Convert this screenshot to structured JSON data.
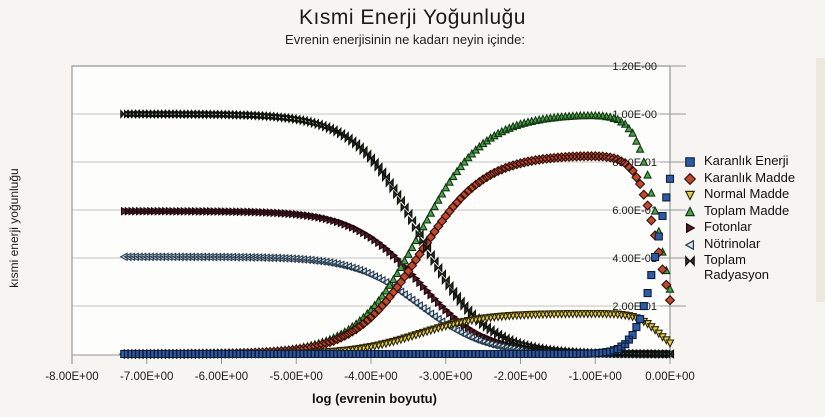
{
  "title": "Kısmi Enerji Yoğunluğu",
  "subtitle": "Evrenin enerjisinin ne kadarı neyin içinde:",
  "x_axis": {
    "label": "log (evrenin boyutu)",
    "min": -8,
    "max": 0,
    "tick_values": [
      -8,
      -7,
      -6,
      -5,
      -4,
      -3,
      -2,
      -1,
      0
    ],
    "tick_labels": [
      "-8.00E+00",
      "-7.00E+00",
      "-6.00E+00",
      "-5.00E+00",
      "-4.00E+00",
      "-3.00E+00",
      "-2.00E+00",
      "-1.00E+00",
      "0.00E+00"
    ]
  },
  "y_axis": {
    "label": "kısmi enerji yoğunluğu",
    "min": 0,
    "max": 1.2,
    "tick_values": [
      1.2,
      1.0,
      0.8,
      0.6,
      0.4,
      0.2
    ],
    "tick_labels": [
      "1.20E-00",
      "1.00E-00",
      "8.00E-01",
      "6.00E-01",
      "4.00E-01",
      "2.00E-01"
    ],
    "grid_values": [
      0.2,
      0.4,
      0.6,
      0.8,
      1.0,
      1.2
    ]
  },
  "colors": {
    "grid": "#c2c2c2",
    "frame": "#969696",
    "plot_bg": "#fdfdfb",
    "text": "#1a1a1a"
  },
  "chart_data": {
    "type": "scatter",
    "x_start": -7.3,
    "x_step": 0.1,
    "draw_order": [
      4,
      5,
      3,
      1,
      6,
      2,
      0
    ],
    "series": [
      {
        "id": "karanlik-enerji",
        "name": "Karanlık Enerji",
        "marker": "square",
        "fill": "#2f5aa8",
        "stroke": "#0d1f3c",
        "values": [
          0.0,
          0.0,
          0.0,
          0.0,
          0.0,
          0.0,
          0.0,
          0.0,
          0.0,
          0.0,
          0.0,
          0.0,
          0.0,
          0.0,
          0.0,
          0.0,
          0.0,
          0.0,
          0.0,
          0.0,
          0.0,
          0.0,
          0.0,
          0.0,
          0.0,
          0.0,
          0.0,
          0.0,
          0.0,
          0.0,
          0.0,
          0.0,
          0.0,
          0.0,
          0.0,
          0.0,
          0.0,
          0.0,
          0.0,
          0.0,
          0.0,
          0.0,
          0.0,
          0.0,
          0.0,
          0.0,
          0.0,
          0.0,
          0.0,
          0.0,
          0.0,
          0.0,
          0.0,
          0.0,
          0.0,
          0.0,
          0.0,
          0.0,
          0.0001,
          0.0002,
          0.0003,
          0.0007,
          0.0013,
          0.0027,
          0.0053,
          0.0106,
          0.021,
          0.041,
          0.0787,
          0.1456,
          0.2537,
          0.4042,
          0.5751,
          0.7299
        ]
      },
      {
        "id": "karanlik-madde",
        "name": "Karanlık Madde",
        "marker": "diamond",
        "fill": "#c0492f",
        "stroke": "#33100a",
        "values": [
          0.0001,
          0.0001,
          0.0002,
          0.0002,
          0.0002,
          0.0003,
          0.0004,
          0.0005,
          0.0006,
          0.0007,
          0.0009,
          0.0012,
          0.0015,
          0.0019,
          0.0023,
          0.003,
          0.0037,
          0.0047,
          0.0059,
          0.0074,
          0.0092,
          0.0116,
          0.0146,
          0.0183,
          0.0229,
          0.0285,
          0.0357,
          0.0444,
          0.0551,
          0.0682,
          0.0841,
          0.1031,
          0.1257,
          0.1525,
          0.1832,
          0.2181,
          0.2571,
          0.2996,
          0.345,
          0.392,
          0.4397,
          0.4868,
          0.532,
          0.5746,
          0.6134,
          0.6482,
          0.6788,
          0.7052,
          0.7277,
          0.7466,
          0.7624,
          0.7753,
          0.786,
          0.7946,
          0.8017,
          0.8073,
          0.8119,
          0.8156,
          0.8185,
          0.8207,
          0.8224,
          0.8236,
          0.8243,
          0.8241,
          0.8228,
          0.8188,
          0.8108,
          0.7946,
          0.7637,
          0.7084,
          0.6188,
          0.4942,
          0.3524,
          0.2241
        ]
      },
      {
        "id": "normal-madde",
        "name": "Normal Madde",
        "marker": "triangle-down",
        "fill": "#e3cf45",
        "stroke": "#2e2708",
        "values": [
          0.0,
          0.0,
          0.0,
          0.0,
          0.0001,
          0.0001,
          0.0001,
          0.0001,
          0.0001,
          0.0002,
          0.0002,
          0.0002,
          0.0003,
          0.0004,
          0.0005,
          0.0006,
          0.0008,
          0.001,
          0.0012,
          0.0015,
          0.0019,
          0.0024,
          0.003,
          0.0037,
          0.0047,
          0.0058,
          0.0073,
          0.0091,
          0.0113,
          0.014,
          0.0172,
          0.0211,
          0.0258,
          0.0312,
          0.0375,
          0.0447,
          0.0527,
          0.0614,
          0.0707,
          0.0803,
          0.0901,
          0.0997,
          0.109,
          0.1177,
          0.1256,
          0.1328,
          0.139,
          0.1444,
          0.149,
          0.1529,
          0.1561,
          0.1588,
          0.161,
          0.1628,
          0.1642,
          0.1654,
          0.1663,
          0.167,
          0.1676,
          0.1681,
          0.1684,
          0.1687,
          0.1688,
          0.1688,
          0.1685,
          0.1677,
          0.1661,
          0.1627,
          0.1564,
          0.1451,
          0.1267,
          0.1012,
          0.0722,
          0.0459
        ]
      },
      {
        "id": "toplam-madde",
        "name": "Toplam Madde",
        "marker": "triangle-up",
        "fill": "#4d9e4d",
        "stroke": "#103910",
        "values": [
          0.0001,
          0.0001,
          0.0002,
          0.0002,
          0.0003,
          0.0004,
          0.0004,
          0.0006,
          0.0007,
          0.0009,
          0.0011,
          0.0014,
          0.0018,
          0.0022,
          0.0028,
          0.0036,
          0.0045,
          0.0056,
          0.0071,
          0.0089,
          0.0111,
          0.014,
          0.0175,
          0.022,
          0.0275,
          0.0344,
          0.043,
          0.0535,
          0.0664,
          0.0822,
          0.1013,
          0.1242,
          0.1515,
          0.1837,
          0.2207,
          0.2628,
          0.3098,
          0.361,
          0.4156,
          0.4723,
          0.5298,
          0.5865,
          0.641,
          0.6923,
          0.7391,
          0.781,
          0.8178,
          0.8496,
          0.8767,
          0.8995,
          0.9185,
          0.9341,
          0.947,
          0.9574,
          0.9659,
          0.9727,
          0.9782,
          0.9826,
          0.9861,
          0.9888,
          0.9909,
          0.9923,
          0.9931,
          0.9929,
          0.9913,
          0.9865,
          0.9768,
          0.9573,
          0.9201,
          0.8535,
          0.7456,
          0.5954,
          0.4246,
          0.27
        ]
      },
      {
        "id": "fotonlar",
        "name": "Fotonlar",
        "marker": "triangle-right",
        "fill": "#571c26",
        "stroke": "#1c070c",
        "values": [
          0.5949,
          0.5949,
          0.5949,
          0.5949,
          0.5948,
          0.5948,
          0.5948,
          0.5946,
          0.5946,
          0.5945,
          0.5943,
          0.5942,
          0.5939,
          0.5937,
          0.5933,
          0.5929,
          0.5923,
          0.5917,
          0.5908,
          0.5897,
          0.5884,
          0.5867,
          0.5846,
          0.5819,
          0.5786,
          0.5745,
          0.5694,
          0.5632,
          0.5555,
          0.5461,
          0.5347,
          0.5211,
          0.5049,
          0.4857,
          0.4637,
          0.4386,
          0.4107,
          0.3802,
          0.3477,
          0.314,
          0.2798,
          0.246,
          0.2136,
          0.1831,
          0.1552,
          0.1303,
          0.1084,
          0.0895,
          0.0734,
          0.0598,
          0.0485,
          0.0392,
          0.0315,
          0.0253,
          0.0203,
          0.0162,
          0.013,
          0.0104,
          0.0083,
          0.0065,
          0.0052,
          0.0042,
          0.0033,
          0.0026,
          0.0021,
          0.0017,
          0.0013,
          0.001,
          0.0008,
          0.0006,
          0.0004,
          0.0002,
          0.0001,
          0.0001
        ]
      },
      {
        "id": "notrinolar",
        "name": "Nötrinolar",
        "marker": "triangle-left",
        "fill": "#dbe7ef",
        "stroke": "#24394c",
        "values": [
          0.405,
          0.405,
          0.4049,
          0.4049,
          0.4049,
          0.4048,
          0.4048,
          0.4048,
          0.4047,
          0.4046,
          0.4046,
          0.4044,
          0.4043,
          0.4041,
          0.4039,
          0.4035,
          0.4032,
          0.4027,
          0.4021,
          0.4014,
          0.4005,
          0.3993,
          0.3979,
          0.3961,
          0.3939,
          0.3911,
          0.3876,
          0.3833,
          0.3781,
          0.3717,
          0.364,
          0.3547,
          0.3436,
          0.3306,
          0.3156,
          0.2986,
          0.2795,
          0.2588,
          0.2367,
          0.2137,
          0.1904,
          0.1675,
          0.1454,
          0.1246,
          0.1057,
          0.0887,
          0.0738,
          0.0609,
          0.0499,
          0.0407,
          0.033,
          0.0267,
          0.0215,
          0.0172,
          0.0138,
          0.0111,
          0.0088,
          0.007,
          0.0056,
          0.0045,
          0.0036,
          0.0028,
          0.0023,
          0.0018,
          0.0014,
          0.0011,
          0.0009,
          0.0007,
          0.0005,
          0.0004,
          0.0003,
          0.0002,
          0.0001,
          0.0
        ]
      },
      {
        "id": "toplam-radyasyon",
        "name": "Toplam Radyasyon",
        "marker": "bowtie",
        "fill": "#30342a",
        "stroke": "#0e110a",
        "values": [
          0.9999,
          0.9999,
          0.9998,
          0.9998,
          0.9997,
          0.9996,
          0.9996,
          0.9994,
          0.9993,
          0.9991,
          0.9989,
          0.9986,
          0.9982,
          0.9978,
          0.9972,
          0.9964,
          0.9955,
          0.9944,
          0.9929,
          0.9911,
          0.9889,
          0.986,
          0.9825,
          0.978,
          0.9725,
          0.9656,
          0.957,
          0.9465,
          0.9336,
          0.9178,
          0.8987,
          0.8758,
          0.8485,
          0.8163,
          0.7793,
          0.7372,
          0.6902,
          0.639,
          0.5844,
          0.5277,
          0.4702,
          0.4135,
          0.359,
          0.3077,
          0.2609,
          0.219,
          0.1822,
          0.1504,
          0.1233,
          0.1005,
          0.0815,
          0.0659,
          0.053,
          0.0426,
          0.0341,
          0.0273,
          0.0218,
          0.0174,
          0.0139,
          0.011,
          0.0088,
          0.007,
          0.0056,
          0.0044,
          0.0035,
          0.0028,
          0.0022,
          0.0017,
          0.0013,
          0.001,
          0.0007,
          0.0004,
          0.0002,
          0.0001
        ]
      }
    ]
  }
}
